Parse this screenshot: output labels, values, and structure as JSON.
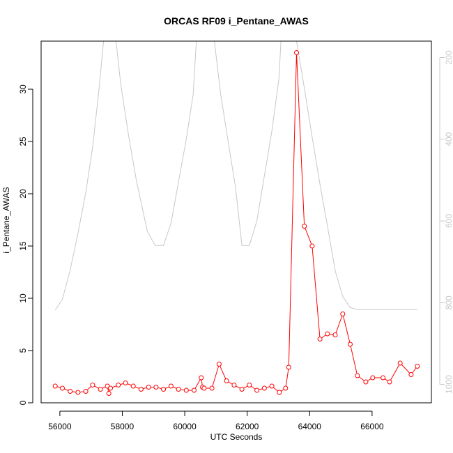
{
  "chart_data": {
    "type": "line",
    "title": "ORCAS RF09 i_Pentane_AWAS",
    "xlabel": "UTC Seconds",
    "ylabel": "i_Pentane_AWAS",
    "xlim": [
      55400,
      67900
    ],
    "ylim": [
      0,
      34.6
    ],
    "xticks": [
      "56000",
      "58000",
      "60000",
      "62000",
      "64000",
      "66000"
    ],
    "xtick_values": [
      56000,
      58000,
      60000,
      62000,
      64000,
      66000
    ],
    "yticks": [
      "0",
      "5",
      "10",
      "15",
      "20",
      "25",
      "30"
    ],
    "ytick_values": [
      0,
      5,
      10,
      15,
      20,
      25,
      30
    ],
    "series": [
      {
        "color": "#ff0000",
        "marker": "open-circle",
        "points": [
          [
            55850,
            1.6
          ],
          [
            56080,
            1.4
          ],
          [
            56330,
            1.1
          ],
          [
            56580,
            1.0
          ],
          [
            56830,
            1.1
          ],
          [
            57050,
            1.7
          ],
          [
            57300,
            1.3
          ],
          [
            57520,
            1.6
          ],
          [
            57570,
            0.9
          ],
          [
            57620,
            1.4
          ],
          [
            57870,
            1.7
          ],
          [
            58100,
            1.9
          ],
          [
            58350,
            1.6
          ],
          [
            58600,
            1.3
          ],
          [
            58840,
            1.5
          ],
          [
            59080,
            1.5
          ],
          [
            59320,
            1.3
          ],
          [
            59560,
            1.6
          ],
          [
            59800,
            1.3
          ],
          [
            60050,
            1.2
          ],
          [
            60300,
            1.2
          ],
          [
            60530,
            2.4
          ],
          [
            60570,
            1.5
          ],
          [
            60620,
            1.4
          ],
          [
            60870,
            1.4
          ],
          [
            61100,
            3.7
          ],
          [
            61340,
            2.1
          ],
          [
            61580,
            1.7
          ],
          [
            61830,
            1.3
          ],
          [
            62070,
            1.7
          ],
          [
            62310,
            1.2
          ],
          [
            62550,
            1.4
          ],
          [
            62790,
            1.6
          ],
          [
            63030,
            1.0
          ],
          [
            63230,
            1.4
          ],
          [
            63330,
            3.4
          ],
          [
            63580,
            33.5
          ],
          [
            63830,
            16.9
          ],
          [
            64080,
            15.0
          ],
          [
            64330,
            6.1
          ],
          [
            64570,
            6.6
          ],
          [
            64820,
            6.5
          ],
          [
            65060,
            8.5
          ],
          [
            65300,
            5.6
          ],
          [
            65530,
            2.6
          ],
          [
            65800,
            2.0
          ],
          [
            66020,
            2.4
          ],
          [
            66350,
            2.4
          ],
          [
            66560,
            2.0
          ],
          [
            66900,
            3.8
          ],
          [
            67250,
            2.7
          ],
          [
            67450,
            3.5
          ]
        ]
      }
    ],
    "secondary_axis": {
      "side": "right",
      "color": "#c8c8c8",
      "reversed": true,
      "ylim": [
        1045,
        160
      ],
      "ticks": [
        "200",
        "400",
        "600",
        "800",
        "1000"
      ],
      "tick_values": [
        200,
        400,
        600,
        800,
        1000
      ],
      "series_points": [
        [
          55850,
          818
        ],
        [
          56080,
          792
        ],
        [
          56330,
          720
        ],
        [
          56580,
          630
        ],
        [
          56830,
          530
        ],
        [
          57050,
          420
        ],
        [
          57250,
          280
        ],
        [
          57400,
          160
        ],
        [
          57800,
          160
        ],
        [
          57950,
          265
        ],
        [
          58200,
          390
        ],
        [
          58450,
          500
        ],
        [
          58800,
          625
        ],
        [
          59050,
          660
        ],
        [
          59320,
          660
        ],
        [
          59560,
          605
        ],
        [
          59800,
          505
        ],
        [
          60050,
          400
        ],
        [
          60270,
          290
        ],
        [
          60370,
          160
        ],
        [
          60950,
          160
        ],
        [
          61150,
          290
        ],
        [
          61400,
          410
        ],
        [
          61630,
          520
        ],
        [
          61830,
          660
        ],
        [
          62070,
          660
        ],
        [
          62310,
          600
        ],
        [
          62550,
          490
        ],
        [
          62790,
          380
        ],
        [
          63020,
          250
        ],
        [
          63080,
          160
        ],
        [
          63580,
          160
        ],
        [
          63830,
          275
        ],
        [
          64080,
          395
        ],
        [
          64330,
          510
        ],
        [
          64570,
          612
        ],
        [
          64820,
          722
        ],
        [
          65060,
          785
        ],
        [
          65300,
          812
        ],
        [
          65550,
          817
        ],
        [
          67450,
          817
        ]
      ]
    },
    "grid": false,
    "legend": "none"
  }
}
